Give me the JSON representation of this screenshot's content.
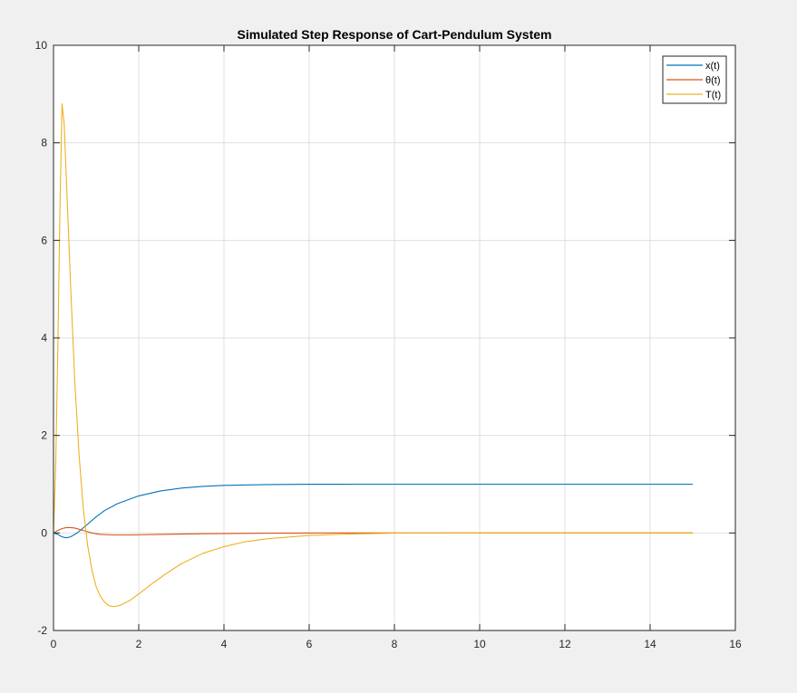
{
  "figure": {
    "background": "#f0f0f0"
  },
  "chart_data": {
    "type": "line",
    "title": "Simulated Step Response of Cart-Pendulum System",
    "xlabel": "",
    "ylabel": "",
    "xlim": [
      0,
      16
    ],
    "ylim": [
      -2,
      10
    ],
    "xticks": [
      0,
      2,
      4,
      6,
      8,
      10,
      12,
      14,
      16
    ],
    "yticks": [
      -2,
      0,
      2,
      4,
      6,
      8,
      10
    ],
    "xtick_labels": [
      "0",
      "2",
      "4",
      "6",
      "8",
      "10",
      "12",
      "14",
      "16"
    ],
    "ytick_labels": [
      "-2",
      "0",
      "2",
      "4",
      "6",
      "8",
      "10"
    ],
    "grid": true,
    "legend": {
      "location": "top-right",
      "entries": [
        "x(t)",
        "θ(t)",
        "T(t)"
      ]
    },
    "series": [
      {
        "name": "x(t)",
        "color": "#0072bd",
        "x": [
          0,
          0.1,
          0.2,
          0.3,
          0.4,
          0.5,
          0.6,
          0.8,
          1.0,
          1.2,
          1.5,
          2.0,
          2.5,
          3.0,
          3.5,
          4.0,
          5.0,
          6.0,
          7.0,
          8.0,
          10.0,
          12.0,
          15.0
        ],
        "y": [
          0,
          -0.03,
          -0.08,
          -0.1,
          -0.08,
          -0.03,
          0.03,
          0.18,
          0.33,
          0.46,
          0.6,
          0.76,
          0.86,
          0.92,
          0.955,
          0.975,
          0.992,
          0.998,
          1.0,
          1.0,
          1.0,
          1.0,
          1.0
        ]
      },
      {
        "name": "θ(t)",
        "color": "#d95319",
        "x": [
          0,
          0.1,
          0.2,
          0.3,
          0.4,
          0.5,
          0.7,
          0.9,
          1.1,
          1.4,
          1.8,
          2.5,
          3.5,
          5.0,
          7.0,
          10.0,
          15.0
        ],
        "y": [
          0,
          0.05,
          0.09,
          0.11,
          0.11,
          0.1,
          0.05,
          0.0,
          -0.03,
          -0.04,
          -0.04,
          -0.03,
          -0.015,
          -0.005,
          0.0,
          0.0,
          0.0
        ]
      },
      {
        "name": "T(t)",
        "color": "#edb120",
        "x": [
          0,
          0.05,
          0.1,
          0.15,
          0.2,
          0.25,
          0.3,
          0.4,
          0.5,
          0.6,
          0.7,
          0.8,
          0.9,
          1.0,
          1.1,
          1.2,
          1.3,
          1.4,
          1.5,
          1.6,
          1.8,
          2.0,
          2.3,
          2.6,
          3.0,
          3.5,
          4.0,
          4.5,
          5.0,
          6.0,
          7.0,
          8.0,
          10.0,
          12.0,
          15.0
        ],
        "y": [
          0,
          1.3,
          3.7,
          6.6,
          8.8,
          8.4,
          7.3,
          5.1,
          3.1,
          1.6,
          0.5,
          -0.25,
          -0.75,
          -1.1,
          -1.3,
          -1.42,
          -1.49,
          -1.51,
          -1.5,
          -1.47,
          -1.38,
          -1.25,
          -1.05,
          -0.86,
          -0.63,
          -0.42,
          -0.28,
          -0.18,
          -0.12,
          -0.05,
          -0.02,
          -0.005,
          0.0,
          0.0,
          0.0
        ]
      }
    ]
  }
}
